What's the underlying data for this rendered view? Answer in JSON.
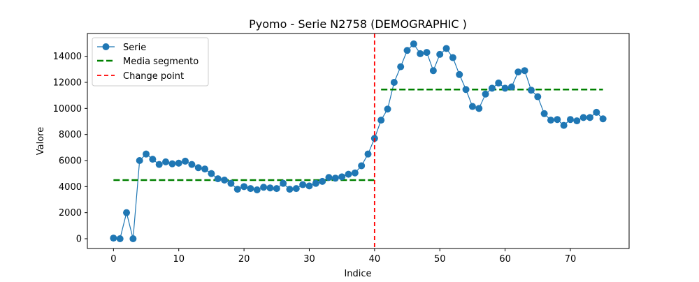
{
  "chart_data": {
    "type": "line",
    "title": "Pyomo - Serie N2758 (DEMOGRAPHIC )",
    "xlabel": "Indice",
    "ylabel": "Valore",
    "xlim": [
      -4,
      79
    ],
    "ylim": [
      -750,
      15750
    ],
    "x_ticks": [
      0,
      10,
      20,
      30,
      40,
      50,
      60,
      70
    ],
    "y_ticks": [
      0,
      2000,
      4000,
      6000,
      8000,
      10000,
      12000,
      14000
    ],
    "grid": false,
    "legend_position": "top-left",
    "series": [
      {
        "name": "Serie",
        "color": "#1f77b4",
        "x": [
          0,
          1,
          2,
          3,
          4,
          5,
          6,
          7,
          8,
          9,
          10,
          11,
          12,
          13,
          14,
          15,
          16,
          17,
          18,
          19,
          20,
          21,
          22,
          23,
          24,
          25,
          26,
          27,
          28,
          29,
          30,
          31,
          32,
          33,
          34,
          35,
          36,
          37,
          38,
          39,
          40,
          41,
          42,
          43,
          44,
          45,
          46,
          47,
          48,
          49,
          50,
          51,
          52,
          53,
          54,
          55,
          56,
          57,
          58,
          59,
          60,
          61,
          62,
          63,
          64,
          65,
          66,
          67,
          68,
          69,
          70,
          71,
          72,
          73,
          74,
          75
        ],
        "values": [
          50,
          0,
          2000,
          0,
          6000,
          6500,
          6100,
          5700,
          5900,
          5750,
          5800,
          5950,
          5700,
          5450,
          5350,
          5000,
          4600,
          4500,
          4250,
          3800,
          4000,
          3850,
          3750,
          3950,
          3900,
          3850,
          4250,
          3800,
          3850,
          4150,
          4050,
          4250,
          4400,
          4700,
          4650,
          4750,
          4950,
          5050,
          5600,
          6500,
          7700,
          9100,
          9950,
          12000,
          13200,
          14450,
          14950,
          14200,
          14300,
          12900,
          14150,
          14600,
          13900,
          12600,
          11450,
          10150,
          10000,
          11100,
          11550,
          11950,
          11550,
          11650,
          12800,
          12900,
          11400,
          10900,
          9600,
          9100,
          9150,
          8700,
          9150,
          9050,
          9300,
          9300,
          9700,
          9200
        ]
      },
      {
        "name": "Media segmento",
        "color": "#008000",
        "segments": [
          {
            "x": [
              0,
              40
            ],
            "y": [
              4500,
              4500
            ]
          },
          {
            "x": [
              41,
              75
            ],
            "y": [
              11450,
              11450
            ]
          }
        ]
      },
      {
        "name": "Change point",
        "color": "#ff0000",
        "x": 40
      }
    ]
  }
}
